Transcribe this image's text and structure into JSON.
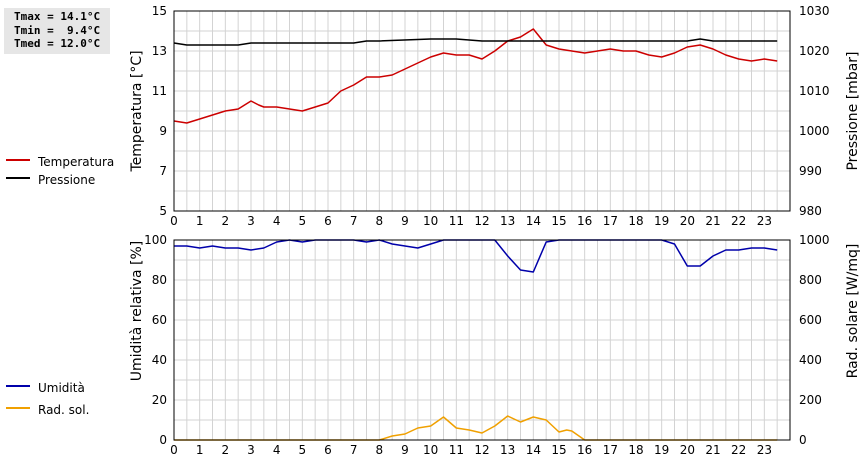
{
  "stats": {
    "tmax": "Tmax = 14.1°C",
    "tmin": "Tmin =  9.4°C",
    "tmed": "Tmed = 12.0°C"
  },
  "colors": {
    "temperature": "#cc0000",
    "pressure": "#000000",
    "humidity": "#0000aa",
    "solar": "#f0a000",
    "grid": "#d3d3d3"
  },
  "chart_data": [
    {
      "type": "line",
      "title": "",
      "xlabel": "",
      "ylabel": "Temperatura [°C]",
      "y2label": "Pressione [mbar]",
      "xlim": [
        0,
        24
      ],
      "ylim": [
        5,
        15
      ],
      "y2lim": [
        980,
        1030
      ],
      "x_ticks": [
        0,
        1,
        2,
        3,
        4,
        5,
        6,
        7,
        8,
        9,
        10,
        11,
        12,
        13,
        14,
        15,
        16,
        17,
        18,
        19,
        20,
        21,
        22,
        23
      ],
      "y_ticks": [
        5,
        7,
        9,
        11,
        13,
        15
      ],
      "y2_ticks": [
        980,
        990,
        1000,
        1010,
        1020,
        1030
      ],
      "grid": true,
      "legend_position": "left",
      "series": [
        {
          "name": "Temperatura",
          "axis": "left",
          "color": "#cc0000",
          "x": [
            0,
            0.5,
            1,
            1.5,
            2,
            2.5,
            3,
            3.3,
            3.5,
            4,
            4.5,
            5,
            5.5,
            6,
            6.5,
            7,
            7.5,
            8,
            8.5,
            9,
            9.5,
            10,
            10.5,
            11,
            11.5,
            12,
            12.5,
            13,
            13.5,
            14,
            14.5,
            15,
            15.5,
            16,
            16.5,
            17,
            17.5,
            18,
            18.5,
            19,
            19.5,
            20,
            20.5,
            21,
            21.5,
            22,
            22.5,
            23,
            23.5
          ],
          "values": [
            9.5,
            9.4,
            9.6,
            9.8,
            10.0,
            10.1,
            10.5,
            10.3,
            10.2,
            10.2,
            10.1,
            10.0,
            10.2,
            10.4,
            11.0,
            11.3,
            11.7,
            11.7,
            11.8,
            12.1,
            12.4,
            12.7,
            12.9,
            12.8,
            12.8,
            12.6,
            13.0,
            13.5,
            13.7,
            14.1,
            13.3,
            13.1,
            13.0,
            12.9,
            13.0,
            13.1,
            13.0,
            13.0,
            12.8,
            12.7,
            12.9,
            13.2,
            13.3,
            13.1,
            12.8,
            12.6,
            12.5,
            12.6,
            12.5
          ]
        },
        {
          "name": "Pressione",
          "axis": "right",
          "color": "#000000",
          "x": [
            0,
            0.5,
            1,
            2.5,
            3,
            4,
            5,
            7,
            7.5,
            8,
            10,
            11,
            12,
            20,
            20.5,
            21,
            22,
            23.5
          ],
          "values": [
            1022.0,
            1021.5,
            1021.5,
            1021.5,
            1022.0,
            1022.0,
            1022.0,
            1022.0,
            1022.5,
            1022.5,
            1023.0,
            1023.0,
            1022.5,
            1022.5,
            1023.0,
            1022.5,
            1022.5,
            1022.5
          ]
        }
      ]
    },
    {
      "type": "line",
      "title": "",
      "xlabel": "",
      "ylabel": "Umidità relativa [%]",
      "y2label": "Rad. solare [W/mq]",
      "xlim": [
        0,
        24
      ],
      "ylim": [
        0,
        100
      ],
      "y2lim": [
        0,
        1000
      ],
      "x_ticks": [
        0,
        1,
        2,
        3,
        4,
        5,
        6,
        7,
        8,
        9,
        10,
        11,
        12,
        13,
        14,
        15,
        16,
        17,
        18,
        19,
        20,
        21,
        22,
        23
      ],
      "y_ticks": [
        0,
        20,
        40,
        60,
        80,
        100
      ],
      "y2_ticks": [
        0,
        200,
        400,
        600,
        800,
        1000
      ],
      "grid": true,
      "legend_position": "left",
      "series": [
        {
          "name": "Umidità",
          "axis": "left",
          "color": "#0000aa",
          "x": [
            0,
            0.5,
            1,
            1.5,
            2,
            2.5,
            3,
            3.5,
            4,
            4.5,
            5,
            5.5,
            6,
            6.5,
            7,
            7.5,
            8,
            8.5,
            9,
            9.5,
            10,
            10.5,
            11,
            11.5,
            12,
            12.5,
            13,
            13.5,
            14,
            14.5,
            15,
            16,
            17,
            18,
            19,
            19.5,
            20,
            20.5,
            21,
            21.5,
            22,
            22.5,
            23,
            23.5
          ],
          "values": [
            97,
            97,
            96,
            97,
            96,
            96,
            95,
            96,
            99,
            100,
            99,
            100,
            100,
            100,
            100,
            99,
            100,
            98,
            97,
            96,
            98,
            100,
            100,
            100,
            100,
            100,
            92,
            85,
            84,
            99,
            100,
            100,
            100,
            100,
            100,
            98,
            87,
            87,
            92,
            95,
            95,
            96,
            96,
            95
          ]
        },
        {
          "name": "Rad. sol.",
          "axis": "right",
          "color": "#f0a000",
          "x": [
            0,
            8,
            8.5,
            9,
            9.5,
            10,
            10.5,
            11,
            11.5,
            12,
            12.5,
            13,
            13.5,
            14,
            14.5,
            15,
            15.3,
            15.5,
            16,
            17,
            18,
            19,
            20,
            21,
            22,
            23,
            23.5
          ],
          "values": [
            0,
            0,
            20,
            30,
            60,
            70,
            115,
            60,
            50,
            35,
            70,
            120,
            90,
            115,
            100,
            40,
            50,
            45,
            0,
            0,
            0,
            0,
            0,
            0,
            0,
            0,
            0
          ]
        }
      ]
    }
  ]
}
